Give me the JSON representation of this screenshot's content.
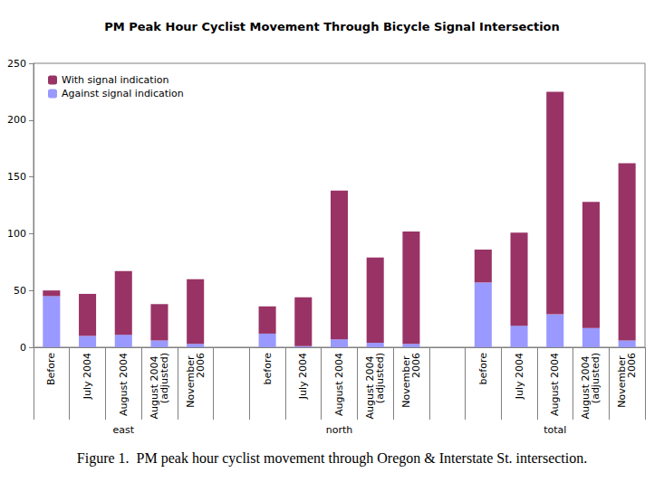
{
  "chart_data": {
    "type": "bar",
    "title": "PM Peak Hour Cyclist Movement Through Bicycle Signal Intersection",
    "caption": "Figure 1.  PM peak hour cyclist movement through Oregon & Interstate St. intersection.",
    "categories": [
      "Before",
      "July 2004",
      "August 2004",
      "August 2004 (adjusted)",
      "November 2006",
      null,
      "before",
      "July 2004",
      "August 2004",
      "August 2004 (adjusted)",
      "November 2006",
      null,
      "before",
      "July 2004",
      "August 2004",
      "August 2004 (adjusted)",
      "November 2006"
    ],
    "group_labels": [
      "east",
      "north",
      "total"
    ],
    "series": [
      {
        "name": "With signal indication",
        "color": "#993366",
        "values": [
          5,
          37,
          56,
          32,
          57,
          null,
          24,
          43,
          131,
          75,
          99,
          null,
          29,
          82,
          196,
          111,
          156
        ]
      },
      {
        "name": "Against signal indication",
        "color": "#9999ff",
        "values": [
          45,
          10,
          11,
          6,
          3,
          null,
          12,
          1,
          7,
          4,
          3,
          null,
          57,
          19,
          29,
          17,
          6
        ]
      }
    ],
    "stacked": true,
    "legend": "upper left",
    "ylim": [
      0,
      250
    ],
    "yticks": [
      0,
      50,
      100,
      150,
      200,
      250
    ],
    "grid": false
  }
}
